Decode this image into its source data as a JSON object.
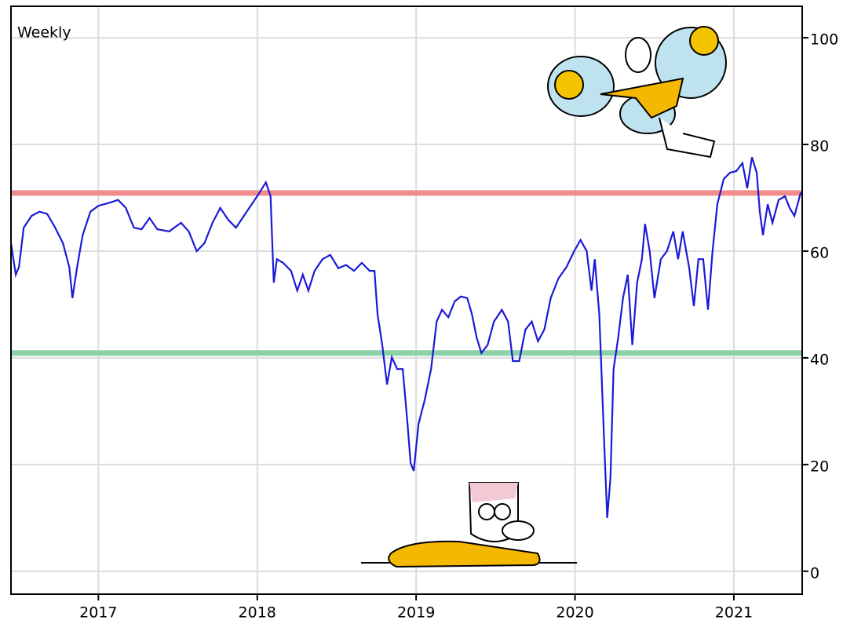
{
  "chart_data": {
    "type": "line",
    "label": "Weekly",
    "label_color": "#2020d0",
    "x": [
      2016.45,
      2016.48,
      2016.5,
      2016.53,
      2016.579,
      2016.629,
      2016.678,
      2016.728,
      2016.777,
      2016.817,
      2016.837,
      2016.866,
      2016.901,
      2016.95,
      2017.0,
      2017.074,
      2017.124,
      2017.173,
      2017.223,
      2017.272,
      2017.322,
      2017.371,
      2017.446,
      2017.52,
      2017.569,
      2017.619,
      2017.668,
      2017.718,
      2017.767,
      2017.817,
      2017.866,
      2017.916,
      2017.965,
      2018.015,
      2018.054,
      2018.084,
      2018.104,
      2018.124,
      2018.163,
      2018.213,
      2018.252,
      2018.287,
      2018.322,
      2018.361,
      2018.411,
      2018.46,
      2018.51,
      2018.559,
      2018.609,
      2018.658,
      2018.708,
      2018.738,
      2018.757,
      2018.787,
      2018.817,
      2018.847,
      2018.881,
      2018.916,
      2018.946,
      2018.965,
      2018.985,
      2019.015,
      2019.054,
      2019.094,
      2019.129,
      2019.163,
      2019.203,
      2019.243,
      2019.282,
      2019.322,
      2019.351,
      2019.381,
      2019.411,
      2019.45,
      2019.49,
      2019.54,
      2019.579,
      2019.609,
      2019.649,
      2019.688,
      2019.728,
      2019.767,
      2019.807,
      2019.847,
      2019.896,
      2019.946,
      2019.995,
      2020.035,
      2020.074,
      2020.104,
      2020.124,
      2020.153,
      2020.183,
      2020.203,
      2020.223,
      2020.243,
      2020.272,
      2020.302,
      2020.332,
      2020.361,
      2020.391,
      2020.421,
      2020.441,
      2020.47,
      2020.5,
      2020.54,
      2020.579,
      2020.619,
      2020.649,
      2020.678,
      2020.718,
      2020.748,
      2020.777,
      2020.807,
      2020.837,
      2020.866,
      2020.896,
      2020.936,
      2020.975,
      2021.015,
      2021.054,
      2021.084,
      2021.114,
      2021.144,
      2021.163,
      2021.183,
      2021.213,
      2021.243,
      2021.282,
      2021.322,
      2021.351,
      2021.381,
      2021.421
    ],
    "series": [
      {
        "color": "#1a1ad8",
        "values": [
          61.5,
          55.6,
          57,
          64.4,
          66.6,
          67.4,
          67,
          64.4,
          61.5,
          57,
          51.2,
          57,
          63,
          67.4,
          68.5,
          69.1,
          69.6,
          68.1,
          64.4,
          64.1,
          66.2,
          64.1,
          63.7,
          65.3,
          63.7,
          60,
          61.5,
          65.3,
          68.1,
          65.9,
          64.4,
          66.6,
          68.8,
          71,
          72.9,
          70.3,
          54.1,
          58.5,
          57.8,
          56.3,
          52.6,
          55.6,
          52.6,
          56.3,
          58.5,
          59.3,
          56.8,
          57.4,
          56.3,
          57.8,
          56.3,
          56.3,
          48.2,
          42.4,
          35,
          40.1,
          37.9,
          37.9,
          27.6,
          20.3,
          18.8,
          27.6,
          32.1,
          37.9,
          46.8,
          49,
          47.6,
          50.6,
          51.5,
          51.2,
          48.2,
          43.8,
          40.9,
          42.4,
          46.8,
          49,
          46.8,
          39.4,
          39.4,
          45.3,
          46.8,
          43.1,
          45.3,
          51.2,
          54.9,
          57,
          60,
          62.1,
          60,
          52.6,
          58.5,
          48.2,
          24.7,
          10,
          17.4,
          37.9,
          43.8,
          51.2,
          55.6,
          42.4,
          54.1,
          58.5,
          65.1,
          60,
          51.2,
          58.5,
          60,
          63.7,
          58.5,
          63.7,
          57,
          49.7,
          58.5,
          58.5,
          49,
          60,
          68.8,
          73.5,
          74.7,
          75,
          76.5,
          71.8,
          77.6,
          74.7,
          67.4,
          63,
          68.8,
          65.3,
          69.6,
          70.3,
          68.1,
          66.6,
          71
        ]
      }
    ],
    "hlines": [
      {
        "value": 70.9,
        "color": "#f08c8c"
      },
      {
        "value": 40.9,
        "color": "#8cd2a8"
      }
    ],
    "xlim": [
      2016.45,
      2021.43
    ],
    "xticks": [
      2017,
      2018,
      2019,
      2020,
      2021
    ],
    "ylim": [
      -4.3,
      105.9
    ],
    "yticks": [
      0,
      20,
      40,
      60,
      80,
      100
    ],
    "grid": true
  }
}
